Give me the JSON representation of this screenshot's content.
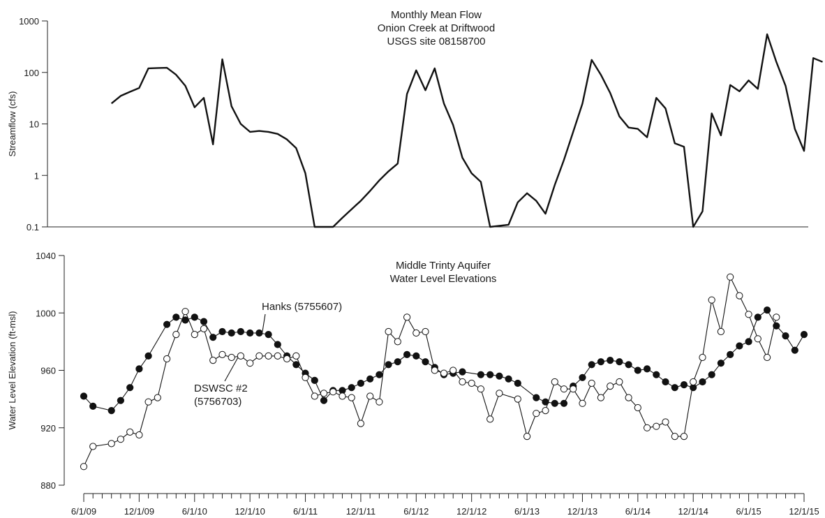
{
  "chart_data": [
    {
      "type": "line",
      "title_lines": [
        "Monthly Mean Flow",
        "Onion Creek at Driftwood",
        "USGS site 08158700"
      ],
      "ylabel": "Streamflow (cfs)",
      "yscale": "log",
      "ylim": [
        0.1,
        1000
      ],
      "yticks": [
        "0.1",
        "1",
        "10",
        "100",
        "1000"
      ],
      "series": [
        {
          "values": [
            [
              "2009-09-01",
              25
            ],
            [
              "2009-10-01",
              35
            ],
            [
              "2009-11-01",
              42
            ],
            [
              "2009-12-01",
              50
            ],
            [
              "2010-01-01",
              120
            ],
            [
              "2010-02-01",
              122
            ],
            [
              "2010-03-01",
              123
            ],
            [
              "2010-04-01",
              90
            ],
            [
              "2010-05-01",
              55
            ],
            [
              "2010-06-01",
              21
            ],
            [
              "2010-07-01",
              32
            ],
            [
              "2010-08-01",
              4
            ],
            [
              "2010-09-01",
              180
            ],
            [
              "2010-10-01",
              22
            ],
            [
              "2010-11-01",
              10
            ],
            [
              "2010-12-01",
              7
            ],
            [
              "2011-01-01",
              7.3
            ],
            [
              "2011-02-01",
              7
            ],
            [
              "2011-03-01",
              6.4
            ],
            [
              "2011-04-01",
              5
            ],
            [
              "2011-05-01",
              3.4
            ],
            [
              "2011-06-01",
              1.1
            ],
            [
              "2011-07-01",
              0.1
            ],
            [
              "2011-09-01",
              0.1
            ],
            [
              "2011-10-01",
              0.15
            ],
            [
              "2011-11-01",
              0.22
            ],
            [
              "2011-12-01",
              0.32
            ],
            [
              "2012-01-01",
              0.5
            ],
            [
              "2012-02-01",
              0.8
            ],
            [
              "2012-03-01",
              1.2
            ],
            [
              "2012-04-01",
              1.7
            ],
            [
              "2012-05-01",
              38
            ],
            [
              "2012-06-01",
              110
            ],
            [
              "2012-07-01",
              45
            ],
            [
              "2012-08-01",
              120
            ],
            [
              "2012-09-01",
              25
            ],
            [
              "2012-10-01",
              9.5
            ],
            [
              "2012-11-01",
              2.2
            ],
            [
              "2012-12-01",
              1.1
            ],
            [
              "2013-01-01",
              0.75
            ],
            [
              "2013-02-01",
              0.1
            ],
            [
              "2013-04-01",
              0.11
            ],
            [
              "2013-05-01",
              0.3
            ],
            [
              "2013-06-01",
              0.45
            ],
            [
              "2013-07-01",
              0.32
            ],
            [
              "2013-08-01",
              0.18
            ],
            [
              "2013-09-01",
              0.65
            ],
            [
              "2013-10-01",
              2
            ],
            [
              "2013-11-01",
              7
            ],
            [
              "2013-12-01",
              25
            ],
            [
              "2014-01-01",
              175
            ],
            [
              "2014-02-01",
              90
            ],
            [
              "2014-03-01",
              40
            ],
            [
              "2014-04-01",
              14
            ],
            [
              "2014-05-01",
              8.5
            ],
            [
              "2014-06-01",
              8
            ],
            [
              "2014-07-01",
              5.5
            ],
            [
              "2014-08-01",
              32
            ],
            [
              "2014-09-01",
              20
            ],
            [
              "2014-10-01",
              4.2
            ],
            [
              "2014-11-01",
              3.6
            ],
            [
              "2014-12-01",
              0.1
            ],
            [
              "2015-01-01",
              0.2
            ],
            [
              "2015-02-01",
              16
            ],
            [
              "2015-03-01",
              6
            ],
            [
              "2015-04-01",
              57
            ],
            [
              "2015-05-01",
              43
            ],
            [
              "2015-06-01",
              70
            ],
            [
              "2015-07-01",
              48
            ],
            [
              "2015-08-01",
              550
            ],
            [
              "2015-09-01",
              160
            ],
            [
              "2015-10-01",
              55
            ],
            [
              "2015-11-01",
              8
            ],
            [
              "2015-12-01",
              3
            ],
            [
              "2016-01-01",
              190
            ],
            [
              "2016-02-01",
              160
            ]
          ]
        }
      ]
    },
    {
      "type": "line",
      "title_lines": [
        "Middle Trinty Aquifer",
        "Water Level Elevations"
      ],
      "ylabel": "Water Level Elevation (ft-msl)",
      "ylim": [
        880,
        1040
      ],
      "yticks": [
        "880",
        "920",
        "960",
        "1000",
        "1040"
      ],
      "xticks": [
        "6/1/09",
        "12/1/09",
        "6/1/10",
        "12/1/10",
        "6/1/11",
        "12/1/11",
        "6/1/12",
        "12/1/12",
        "6/1/13",
        "12/1/13",
        "6/1/14",
        "12/1/14",
        "6/1/15",
        "12/1/15"
      ],
      "series": [
        {
          "name": "Hanks (5755607)",
          "marker": "filled-circle",
          "values": [
            [
              "2009-06-01",
              942
            ],
            [
              "2009-07-01",
              935
            ],
            [
              "2009-09-01",
              932
            ],
            [
              "2009-10-01",
              939
            ],
            [
              "2009-11-01",
              948
            ],
            [
              "2009-12-01",
              961
            ],
            [
              "2010-01-01",
              970
            ],
            [
              "2010-03-01",
              992
            ],
            [
              "2010-04-01",
              997
            ],
            [
              "2010-05-01",
              995
            ],
            [
              "2010-06-01",
              997
            ],
            [
              "2010-07-01",
              994
            ],
            [
              "2010-08-01",
              983
            ],
            [
              "2010-09-01",
              987
            ],
            [
              "2010-10-01",
              986
            ],
            [
              "2010-11-01",
              987
            ],
            [
              "2010-12-01",
              986
            ],
            [
              "2011-01-01",
              986
            ],
            [
              "2011-02-01",
              985
            ],
            [
              "2011-03-01",
              978
            ],
            [
              "2011-04-01",
              970
            ],
            [
              "2011-05-01",
              964
            ],
            [
              "2011-06-01",
              958
            ],
            [
              "2011-07-01",
              953
            ],
            [
              "2011-08-01",
              939
            ],
            [
              "2011-09-01",
              946
            ],
            [
              "2011-10-01",
              946
            ],
            [
              "2011-11-01",
              948
            ],
            [
              "2011-12-01",
              951
            ],
            [
              "2012-01-01",
              954
            ],
            [
              "2012-02-01",
              957
            ],
            [
              "2012-03-01",
              964
            ],
            [
              "2012-04-01",
              966
            ],
            [
              "2012-05-01",
              971
            ],
            [
              "2012-06-01",
              970
            ],
            [
              "2012-07-01",
              966
            ],
            [
              "2012-08-01",
              962
            ],
            [
              "2012-09-01",
              957
            ],
            [
              "2012-10-01",
              958
            ],
            [
              "2012-11-01",
              959
            ],
            [
              "2013-01-01",
              957
            ],
            [
              "2013-02-01",
              957
            ],
            [
              "2013-03-01",
              956
            ],
            [
              "2013-04-01",
              954
            ],
            [
              "2013-05-01",
              951
            ],
            [
              "2013-07-01",
              941
            ],
            [
              "2013-08-01",
              938
            ],
            [
              "2013-09-01",
              937
            ],
            [
              "2013-10-01",
              937
            ],
            [
              "2013-11-01",
              949
            ],
            [
              "2013-12-01",
              955
            ],
            [
              "2014-01-01",
              964
            ],
            [
              "2014-02-01",
              966
            ],
            [
              "2014-03-01",
              967
            ],
            [
              "2014-04-01",
              966
            ],
            [
              "2014-05-01",
              964
            ],
            [
              "2014-06-01",
              960
            ],
            [
              "2014-07-01",
              961
            ],
            [
              "2014-08-01",
              957
            ],
            [
              "2014-09-01",
              952
            ],
            [
              "2014-10-01",
              948
            ],
            [
              "2014-11-01",
              950
            ],
            [
              "2014-12-01",
              948
            ],
            [
              "2015-01-01",
              952
            ],
            [
              "2015-02-01",
              957
            ],
            [
              "2015-03-01",
              965
            ],
            [
              "2015-04-01",
              971
            ],
            [
              "2015-05-01",
              977
            ],
            [
              "2015-06-01",
              980
            ],
            [
              "2015-07-01",
              997
            ],
            [
              "2015-08-01",
              1002
            ],
            [
              "2015-09-01",
              991
            ],
            [
              "2015-10-01",
              984
            ],
            [
              "2015-11-01",
              974
            ],
            [
              "2015-12-01",
              985
            ]
          ]
        },
        {
          "name": "DSWSC #2 (5756703)",
          "label_lines": [
            "DSWSC #2",
            "(5756703)"
          ],
          "marker": "open-circle",
          "values": [
            [
              "2009-06-01",
              893
            ],
            [
              "2009-07-01",
              907
            ],
            [
              "2009-09-01",
              909
            ],
            [
              "2009-10-01",
              912
            ],
            [
              "2009-11-01",
              917
            ],
            [
              "2009-12-01",
              915
            ],
            [
              "2010-01-01",
              938
            ],
            [
              "2010-02-01",
              941
            ],
            [
              "2010-03-01",
              968
            ],
            [
              "2010-04-01",
              985
            ],
            [
              "2010-05-01",
              1001
            ],
            [
              "2010-06-01",
              985
            ],
            [
              "2010-07-01",
              989
            ],
            [
              "2010-08-01",
              967
            ],
            [
              "2010-09-01",
              971
            ],
            [
              "2010-10-01",
              969
            ],
            [
              "2010-11-01",
              970
            ],
            [
              "2010-12-01",
              965
            ],
            [
              "2011-01-01",
              970
            ],
            [
              "2011-02-01",
              970
            ],
            [
              "2011-03-01",
              970
            ],
            [
              "2011-04-01",
              968
            ],
            [
              "2011-05-01",
              970
            ],
            [
              "2011-06-01",
              955
            ],
            [
              "2011-07-01",
              942
            ],
            [
              "2011-08-01",
              944
            ],
            [
              "2011-09-01",
              945
            ],
            [
              "2011-10-01",
              942
            ],
            [
              "2011-11-01",
              941
            ],
            [
              "2011-12-01",
              923
            ],
            [
              "2012-01-01",
              942
            ],
            [
              "2012-02-01",
              938
            ],
            [
              "2012-03-01",
              987
            ],
            [
              "2012-04-01",
              980
            ],
            [
              "2012-05-01",
              997
            ],
            [
              "2012-06-01",
              986
            ],
            [
              "2012-07-01",
              987
            ],
            [
              "2012-08-01",
              960
            ],
            [
              "2012-09-01",
              958
            ],
            [
              "2012-10-01",
              960
            ],
            [
              "2012-11-01",
              952
            ],
            [
              "2012-12-01",
              951
            ],
            [
              "2013-01-01",
              947
            ],
            [
              "2013-02-01",
              926
            ],
            [
              "2013-03-01",
              944
            ],
            [
              "2013-05-01",
              940
            ],
            [
              "2013-06-01",
              914
            ],
            [
              "2013-07-01",
              930
            ],
            [
              "2013-08-01",
              932
            ],
            [
              "2013-09-01",
              952
            ],
            [
              "2013-10-01",
              947
            ],
            [
              "2013-11-01",
              947
            ],
            [
              "2013-12-01",
              937
            ],
            [
              "2014-01-01",
              951
            ],
            [
              "2014-02-01",
              941
            ],
            [
              "2014-03-01",
              949
            ],
            [
              "2014-04-01",
              952
            ],
            [
              "2014-05-01",
              941
            ],
            [
              "2014-06-01",
              934
            ],
            [
              "2014-07-01",
              920
            ],
            [
              "2014-08-01",
              921
            ],
            [
              "2014-09-01",
              924
            ],
            [
              "2014-10-01",
              914
            ],
            [
              "2014-11-01",
              914
            ],
            [
              "2014-12-01",
              952
            ],
            [
              "2015-01-01",
              969
            ],
            [
              "2015-02-01",
              1009
            ],
            [
              "2015-03-01",
              987
            ],
            [
              "2015-04-01",
              1025
            ],
            [
              "2015-05-01",
              1012
            ],
            [
              "2015-06-01",
              999
            ],
            [
              "2015-07-01",
              982
            ],
            [
              "2015-08-01",
              969
            ],
            [
              "2015-09-01",
              997
            ]
          ]
        }
      ]
    }
  ]
}
